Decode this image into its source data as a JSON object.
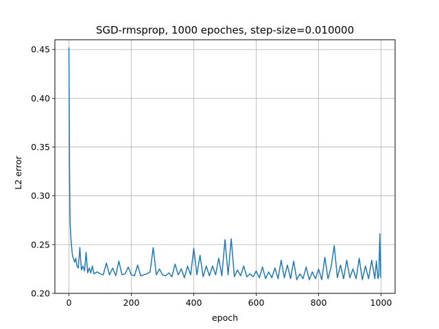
{
  "chart_data": {
    "type": "line",
    "title": "SGD-rmsprop, 1000 epoches, step-size=0.010000",
    "xlabel": "epoch",
    "ylabel": "L2 error",
    "xlim": [
      -45,
      1045
    ],
    "ylim": [
      0.2,
      0.46
    ],
    "xticks": [
      0,
      200,
      400,
      600,
      800,
      1000
    ],
    "yticks": [
      0.2,
      0.25,
      0.3,
      0.35,
      0.4,
      0.45
    ],
    "xtick_labels": [
      "0",
      "200",
      "400",
      "600",
      "800",
      "1000"
    ],
    "ytick_labels": [
      "0.20",
      "0.25",
      "0.30",
      "0.35",
      "0.40",
      "0.45"
    ],
    "grid": true,
    "series": [
      {
        "color": "#1f77b4",
        "x": [
          0,
          1,
          2,
          3,
          4,
          5,
          6,
          8,
          10,
          12,
          15,
          18,
          22,
          26,
          30,
          35,
          40,
          45,
          50,
          55,
          60,
          65,
          70,
          75,
          80,
          90,
          100,
          110,
          120,
          130,
          140,
          150,
          160,
          170,
          180,
          190,
          200,
          210,
          220,
          230,
          240,
          250,
          260,
          270,
          280,
          290,
          300,
          310,
          320,
          330,
          340,
          350,
          360,
          370,
          380,
          390,
          400,
          410,
          420,
          430,
          440,
          450,
          460,
          470,
          480,
          490,
          500,
          510,
          520,
          530,
          540,
          550,
          560,
          570,
          580,
          590,
          600,
          610,
          620,
          630,
          640,
          650,
          660,
          670,
          680,
          690,
          700,
          710,
          720,
          730,
          740,
          750,
          760,
          770,
          780,
          790,
          800,
          810,
          820,
          830,
          840,
          850,
          860,
          870,
          880,
          890,
          900,
          910,
          920,
          930,
          940,
          950,
          960,
          970,
          980,
          985,
          990,
          993,
          996,
          999
        ],
        "values": [
          0.452,
          0.39,
          0.33,
          0.29,
          0.27,
          0.265,
          0.258,
          0.25,
          0.243,
          0.238,
          0.235,
          0.232,
          0.236,
          0.228,
          0.226,
          0.247,
          0.224,
          0.228,
          0.223,
          0.242,
          0.221,
          0.226,
          0.221,
          0.228,
          0.22,
          0.222,
          0.22,
          0.219,
          0.231,
          0.219,
          0.226,
          0.218,
          0.233,
          0.219,
          0.22,
          0.227,
          0.219,
          0.218,
          0.229,
          0.218,
          0.219,
          0.22,
          0.222,
          0.247,
          0.219,
          0.225,
          0.219,
          0.218,
          0.221,
          0.217,
          0.23,
          0.219,
          0.225,
          0.216,
          0.228,
          0.219,
          0.246,
          0.219,
          0.239,
          0.217,
          0.228,
          0.218,
          0.228,
          0.219,
          0.236,
          0.218,
          0.255,
          0.219,
          0.256,
          0.217,
          0.224,
          0.218,
          0.228,
          0.217,
          0.22,
          0.217,
          0.223,
          0.216,
          0.227,
          0.215,
          0.222,
          0.216,
          0.226,
          0.215,
          0.234,
          0.216,
          0.229,
          0.215,
          0.233,
          0.214,
          0.22,
          0.215,
          0.227,
          0.214,
          0.222,
          0.215,
          0.225,
          0.214,
          0.237,
          0.215,
          0.227,
          0.249,
          0.216,
          0.229,
          0.215,
          0.234,
          0.216,
          0.225,
          0.215,
          0.236,
          0.214,
          0.228,
          0.215,
          0.234,
          0.215,
          0.233,
          0.215,
          0.219,
          0.261,
          0.216
        ]
      }
    ]
  }
}
